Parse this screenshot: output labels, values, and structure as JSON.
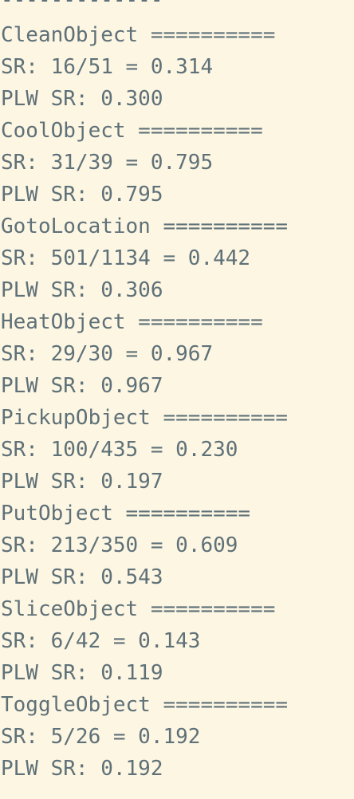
{
  "top_fragment": "-------------",
  "lines": [
    "CleanObject ==========",
    "SR: 16/51 = 0.314",
    "PLW SR: 0.300",
    "CoolObject ==========",
    "SR: 31/39 = 0.795",
    "PLW SR: 0.795",
    "GotoLocation ==========",
    "SR: 501/1134 = 0.442",
    "PLW SR: 0.306",
    "HeatObject ==========",
    "SR: 29/30 = 0.967",
    "PLW SR: 0.967",
    "PickupObject ==========",
    "SR: 100/435 = 0.230",
    "PLW SR: 0.197",
    "PutObject ==========",
    "SR: 213/350 = 0.609",
    "PLW SR: 0.543",
    "SliceObject ==========",
    "SR: 6/42 = 0.143",
    "PLW SR: 0.119",
    "ToggleObject ==========",
    "SR: 5/26 = 0.192",
    "PLW SR: 0.192"
  ]
}
